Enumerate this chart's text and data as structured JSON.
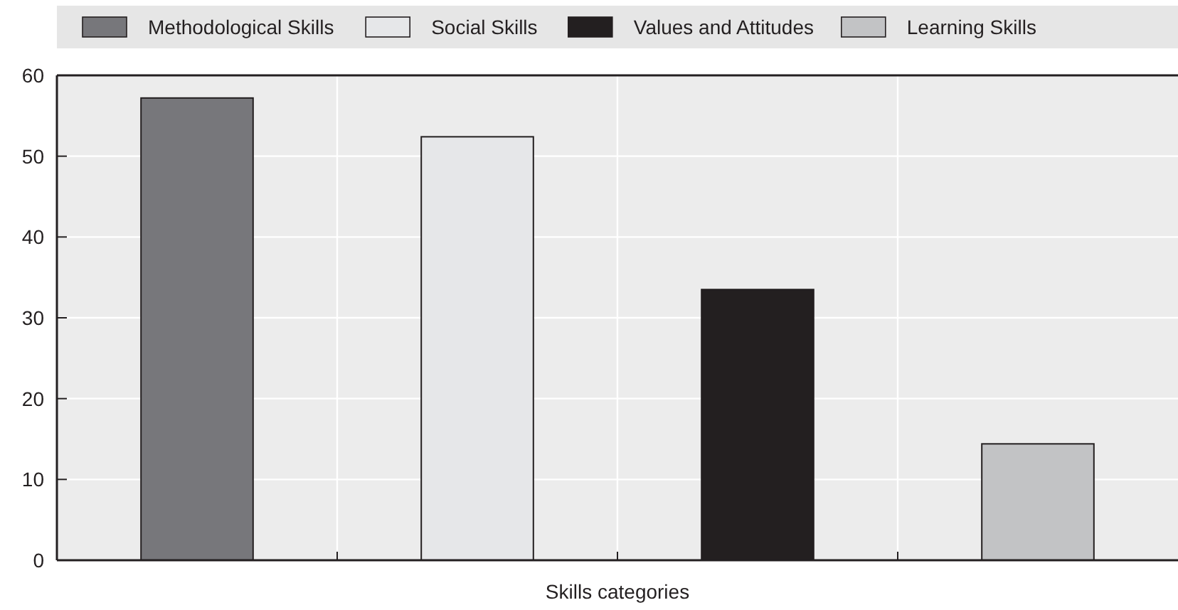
{
  "chart_data": {
    "type": "bar",
    "xlabel": "Skills categories",
    "categories": [
      null,
      null,
      null,
      null
    ],
    "series": [
      {
        "name": "Methodological Skills",
        "color": "#77777b",
        "values": [
          57.2,
          null,
          null,
          null
        ]
      },
      {
        "name": "Social Skills",
        "color": "#e6e7e9",
        "values": [
          null,
          52.4,
          null,
          null
        ]
      },
      {
        "name": "Values and Attitudes",
        "color": "#231f20",
        "values": [
          null,
          null,
          33.5,
          null
        ]
      },
      {
        "name": "Learning Skills",
        "color": "#c2c3c5",
        "values": [
          null,
          null,
          null,
          14.4
        ]
      }
    ],
    "ylim": [
      0,
      60
    ],
    "yticks": [
      0,
      10,
      20,
      30,
      40,
      50,
      60
    ],
    "grid": true,
    "legend": "top"
  }
}
